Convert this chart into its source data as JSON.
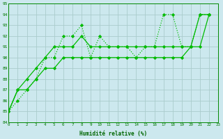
{
  "title": "",
  "xlabel": "Humidité relative (%)",
  "ylabel": "",
  "bg_color": "#cce8ee",
  "grid_color": "#aacccc",
  "line_color": "#00bb00",
  "xmin": 0,
  "xmax": 23,
  "ymin": 84,
  "ymax": 95,
  "series": [
    {
      "y": [
        85,
        86,
        87,
        88,
        90,
        90,
        92,
        92,
        93,
        90,
        92,
        91,
        91,
        91,
        90,
        91,
        91,
        94,
        94,
        91,
        91,
        94,
        94
      ],
      "linestyle": ":",
      "linewidth": 0.9,
      "marker": "D",
      "markersize": 2.2
    },
    {
      "y": [
        85,
        87,
        88,
        89,
        90,
        91,
        91,
        91,
        92,
        91,
        91,
        91,
        91,
        91,
        91,
        91,
        91,
        91,
        91,
        91,
        91,
        94,
        94
      ],
      "linestyle": "-",
      "linewidth": 0.9,
      "marker": "D",
      "markersize": 2.2
    },
    {
      "y": [
        85,
        87,
        87,
        88,
        89,
        89,
        90,
        90,
        90,
        90,
        90,
        90,
        90,
        90,
        90,
        90,
        90,
        90,
        90,
        90,
        91,
        91,
        94
      ],
      "linestyle": "-",
      "linewidth": 0.9,
      "marker": "D",
      "markersize": 2.2
    }
  ]
}
